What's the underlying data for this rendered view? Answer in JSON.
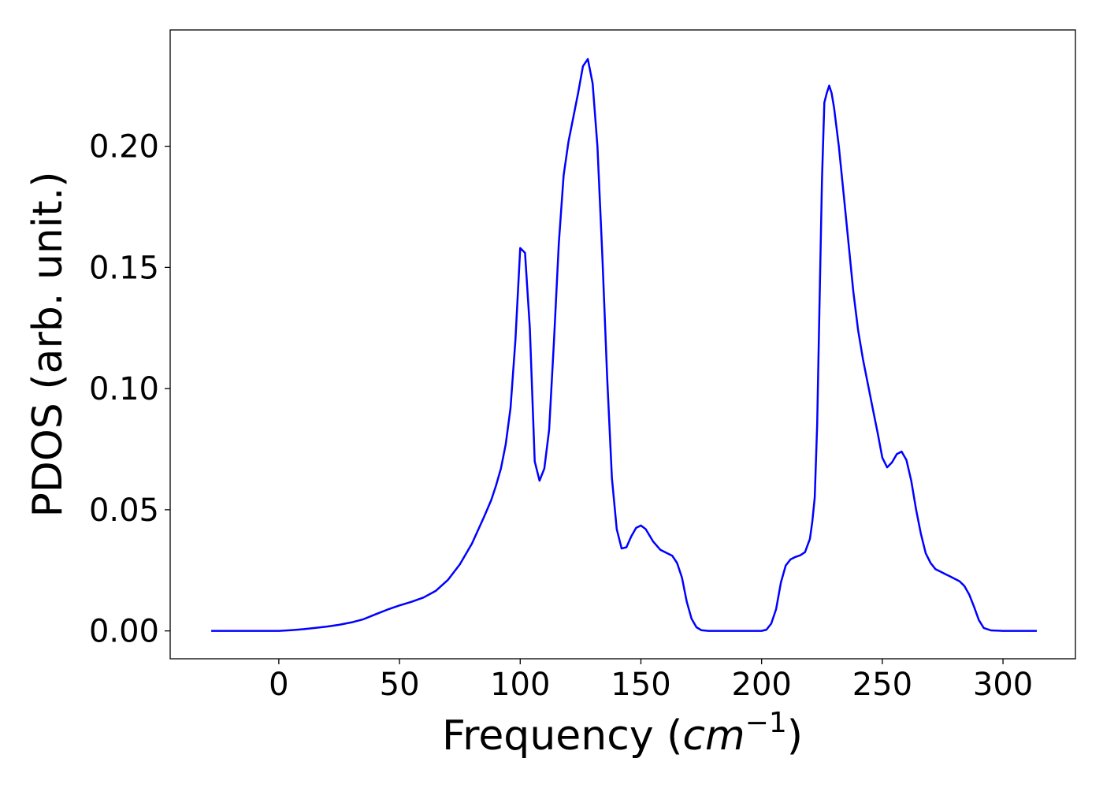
{
  "chart_data": {
    "type": "line",
    "title": "",
    "xlabel": "Frequency (",
    "xlabel_math": "cm",
    "xlabel_sup": "−1",
    "xlabel_tail": ")",
    "ylabel": "PDOS (arb. unit.)",
    "xlim": [
      -45,
      330
    ],
    "ylim": [
      -0.0115,
      0.248
    ],
    "xticks": [
      0,
      50,
      100,
      150,
      200,
      250,
      300
    ],
    "xtick_labels": [
      "0",
      "50",
      "100",
      "150",
      "200",
      "250",
      "300"
    ],
    "yticks": [
      0.0,
      0.05,
      0.1,
      0.15,
      0.2
    ],
    "ytick_labels": [
      "0.00",
      "0.05",
      "0.10",
      "0.15",
      "0.20"
    ],
    "grid": false,
    "series": [
      {
        "color": "#0000ff",
        "x": [
          -28,
          0,
          5,
          10,
          15,
          20,
          25,
          30,
          35,
          40,
          45,
          50,
          55,
          60,
          65,
          70,
          75,
          80,
          85,
          88,
          90,
          92,
          94,
          96,
          98,
          100,
          102,
          104,
          106,
          108,
          110,
          112,
          114,
          116,
          118,
          120,
          122,
          124,
          126,
          128,
          130,
          132,
          134,
          136,
          138,
          140,
          142,
          144,
          146,
          148,
          150,
          152,
          155,
          158,
          161,
          163,
          165,
          167,
          169,
          171,
          173,
          175,
          178,
          185,
          195,
          200,
          202,
          204,
          206,
          208,
          210,
          212,
          214,
          216,
          218,
          220,
          221,
          222,
          223,
          224,
          225,
          226,
          227,
          228,
          229,
          230,
          232,
          234,
          236,
          238,
          240,
          242,
          244,
          246,
          248,
          250,
          252,
          254,
          256,
          258,
          260,
          262,
          264,
          266,
          268,
          270,
          272,
          274,
          276,
          278,
          280,
          282,
          284,
          286,
          288,
          290,
          292,
          295,
          300,
          310,
          314
        ],
        "y": [
          0.0,
          0.0,
          0.0003,
          0.0007,
          0.0012,
          0.0018,
          0.0025,
          0.0035,
          0.0048,
          0.0068,
          0.0088,
          0.0105,
          0.012,
          0.0138,
          0.0165,
          0.021,
          0.0275,
          0.036,
          0.047,
          0.054,
          0.06,
          0.067,
          0.077,
          0.092,
          0.12,
          0.158,
          0.156,
          0.125,
          0.07,
          0.062,
          0.067,
          0.083,
          0.12,
          0.16,
          0.188,
          0.202,
          0.212,
          0.222,
          0.233,
          0.236,
          0.226,
          0.2,
          0.155,
          0.105,
          0.063,
          0.042,
          0.034,
          0.0345,
          0.039,
          0.0425,
          0.0435,
          0.042,
          0.037,
          0.0335,
          0.032,
          0.031,
          0.028,
          0.022,
          0.012,
          0.005,
          0.0015,
          0.0003,
          0.0,
          0.0,
          0.0,
          0.0,
          0.0005,
          0.003,
          0.009,
          0.02,
          0.027,
          0.0295,
          0.0305,
          0.0312,
          0.0325,
          0.038,
          0.045,
          0.055,
          0.085,
          0.135,
          0.186,
          0.218,
          0.222,
          0.225,
          0.222,
          0.216,
          0.2,
          0.18,
          0.16,
          0.14,
          0.124,
          0.112,
          0.102,
          0.092,
          0.082,
          0.0715,
          0.0675,
          0.0695,
          0.073,
          0.074,
          0.0705,
          0.062,
          0.05,
          0.04,
          0.032,
          0.028,
          0.0255,
          0.0245,
          0.0235,
          0.0225,
          0.0215,
          0.0205,
          0.0185,
          0.015,
          0.01,
          0.0045,
          0.0012,
          0.0002,
          0.0,
          0.0,
          0.0
        ]
      }
    ]
  }
}
